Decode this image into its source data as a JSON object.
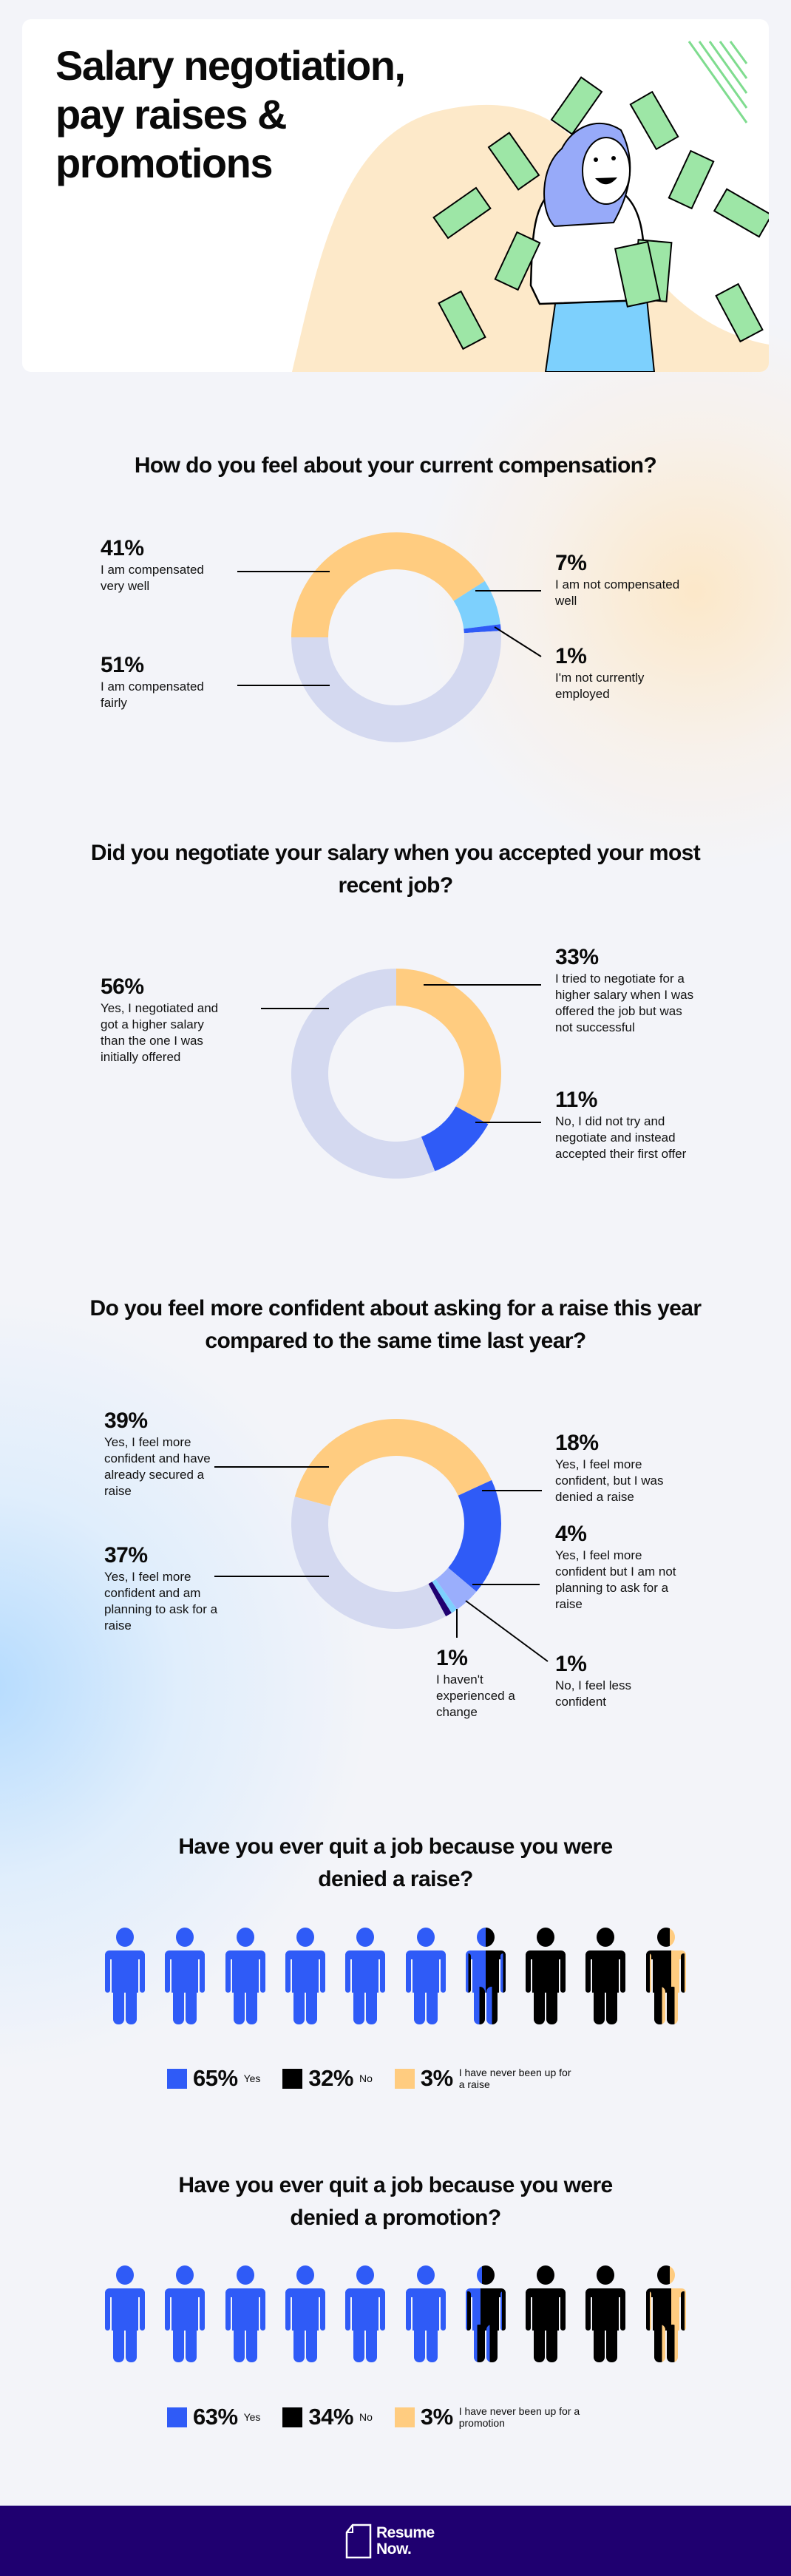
{
  "header": {
    "title": "Salary negotiation, pay raises & promotions"
  },
  "colors": {
    "orange": "#ffcc80",
    "light_blue": "#7dd0fd",
    "blue": "#2f5bf7",
    "grey": "#d4d9f0",
    "navy": "#1f0070",
    "lavender": "#9aaefc",
    "black": "#000000"
  },
  "chart_data": [
    {
      "type": "pie",
      "title": "How do you feel about your current compensation?",
      "slices": [
        {
          "label": "I am compensated very well",
          "value": 41,
          "color": "#ffcc80"
        },
        {
          "label": "I am not compensated well",
          "value": 7,
          "color": "#7dd0fd"
        },
        {
          "label": "I'm not currently employed",
          "value": 1,
          "color": "#2f5bf7"
        },
        {
          "label": "I am compensated fairly",
          "value": 51,
          "color": "#d4d9f0"
        }
      ]
    },
    {
      "type": "pie",
      "title": "Did you negotiate your salary when you accepted your most recent job?",
      "slices": [
        {
          "label": "I tried to negotiate for a higher salary when I was offered the job but was not successful",
          "value": 33,
          "color": "#ffcc80"
        },
        {
          "label": "No, I did not try and negotiate and instead accepted their first offer",
          "value": 11,
          "color": "#2f5bf7"
        },
        {
          "label": "Yes, I negotiated and got a higher salary than the one I was initially offered",
          "value": 56,
          "color": "#d4d9f0"
        }
      ]
    },
    {
      "type": "pie",
      "title": "Do you feel more confident about asking for a raise this year compared to the same time last year?",
      "slices": [
        {
          "label": "Yes, I feel more confident and have already secured a raise",
          "value": 39,
          "color": "#ffcc80"
        },
        {
          "label": "Yes, I feel more confident, but I was denied a raise",
          "value": 18,
          "color": "#2f5bf7"
        },
        {
          "label": "Yes, I feel more confident but I am not planning to ask for a raise",
          "value": 4,
          "color": "#9aaefc"
        },
        {
          "label": "No, I feel less confident",
          "value": 1,
          "color": "#7dd0fd"
        },
        {
          "label": "I haven't experienced a change",
          "value": 1,
          "color": "#1f0070"
        },
        {
          "label": "Yes, I feel more confident and am planning to ask for a raise",
          "value": 37,
          "color": "#d4d9f0"
        }
      ]
    },
    {
      "type": "pictogram",
      "title": "Have you ever quit a job because you were denied a raise?",
      "icons": 10,
      "slices": [
        {
          "label": "Yes",
          "value": 65,
          "color": "#2f5bf7"
        },
        {
          "label": "No",
          "value": 32,
          "color": "#000000"
        },
        {
          "label": "I have never been up for a raise",
          "value": 3,
          "color": "#ffcc80"
        }
      ]
    },
    {
      "type": "pictogram",
      "title": "Have you ever quit a job because you were denied a promotion?",
      "icons": 10,
      "slices": [
        {
          "label": "Yes",
          "value": 63,
          "color": "#2f5bf7"
        },
        {
          "label": "No",
          "value": 34,
          "color": "#000000"
        },
        {
          "label": "I have never been up for a promotion",
          "value": 3,
          "color": "#ffcc80"
        }
      ]
    }
  ],
  "footer": {
    "logo_line1": "Resume",
    "logo_line2": "Now."
  }
}
